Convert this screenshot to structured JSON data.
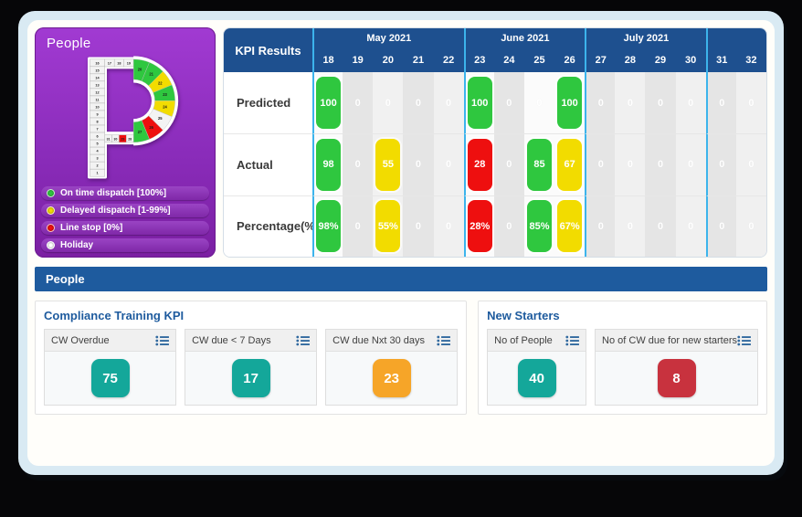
{
  "colors": {
    "header_blue": "#1e508f",
    "section_blue": "#1e5b9e",
    "separator_cyan": "#3cb4ec",
    "green": "#2fc73f",
    "yellow": "#f2dc00",
    "red": "#ee0f0f",
    "grey_cell": "#f3f3f3",
    "teal": "#14a79a",
    "orange": "#f6a528",
    "card_red": "#c8323e",
    "purple_top": "#a13ad2",
    "purple_bottom": "#7b1fa2"
  },
  "calendar_panel": {
    "title": "People",
    "stem_days": [
      "16",
      "15",
      "14",
      "13",
      "12",
      "11",
      "10",
      "9",
      "8",
      "7",
      "6",
      "5",
      "4",
      "3",
      "2",
      "1"
    ],
    "top_row_days": [
      "17",
      "18",
      "19"
    ],
    "arc_days": [
      {
        "day": "20",
        "status": "green"
      },
      {
        "day": "21",
        "status": "green"
      },
      {
        "day": "22",
        "status": "yellow"
      },
      {
        "day": "23",
        "status": "green"
      },
      {
        "day": "24",
        "status": "yellow"
      },
      {
        "day": "25",
        "status": "grey"
      },
      {
        "day": "26",
        "status": "red"
      },
      {
        "day": "27",
        "status": "green"
      }
    ],
    "mid_row_days": [
      {
        "day": "31",
        "status": "grey"
      },
      {
        "day": "30",
        "status": "grey"
      },
      {
        "day": "29",
        "status": "red"
      },
      {
        "day": "28",
        "status": "grey"
      }
    ],
    "legend": [
      {
        "status": "green",
        "label": "On time dispatch [100%]"
      },
      {
        "status": "yellow",
        "label": "Delayed dispatch [1-99%]"
      },
      {
        "status": "red",
        "label": "Line stop [0%]"
      },
      {
        "status": "white",
        "label": "Holiday"
      }
    ]
  },
  "kpi_table": {
    "title": "KPI Results",
    "month_groups": [
      {
        "label": "May 2021",
        "span": 5
      },
      {
        "label": "June 2021",
        "span": 4
      },
      {
        "label": "July 2021",
        "span": 4
      },
      {
        "label": "",
        "span": 2
      }
    ],
    "days": [
      "18",
      "19",
      "20",
      "21",
      "22",
      "23",
      "24",
      "25",
      "26",
      "27",
      "28",
      "29",
      "30",
      "31",
      "32"
    ],
    "separator_columns": [
      0,
      5,
      9,
      13
    ],
    "column_shades": [
      "#fbfbfb",
      "#e5e5e5",
      "#f1f1f1",
      "#e5e5e5",
      "#f0f0f0",
      "#fbfbfb",
      "#e5e5e5",
      "#fbfbfb",
      "#fbfbfb",
      "#e5e5e5",
      "#f0f0f0",
      "#e5e5e5",
      "#f0f0f0",
      "#e5e5e5",
      "#f0f0f0"
    ],
    "rows": [
      {
        "label": "Predicted",
        "cells": [
          [
            "100",
            "green"
          ],
          [
            "0",
            ""
          ],
          [
            "0",
            ""
          ],
          [
            "0",
            ""
          ],
          [
            "0",
            ""
          ],
          [
            "100",
            "green"
          ],
          [
            "0",
            ""
          ],
          [
            "0",
            ""
          ],
          [
            "100",
            "green"
          ],
          [
            "0",
            ""
          ],
          [
            "0",
            ""
          ],
          [
            "0",
            ""
          ],
          [
            "0",
            ""
          ],
          [
            "0",
            ""
          ],
          [
            "0",
            ""
          ]
        ]
      },
      {
        "label": "Actual",
        "cells": [
          [
            "98",
            "green"
          ],
          [
            "0",
            ""
          ],
          [
            "55",
            "yellow"
          ],
          [
            "0",
            ""
          ],
          [
            "0",
            ""
          ],
          [
            "28",
            "red"
          ],
          [
            "0",
            ""
          ],
          [
            "85",
            "green"
          ],
          [
            "67",
            "yellow"
          ],
          [
            "0",
            ""
          ],
          [
            "0",
            ""
          ],
          [
            "0",
            ""
          ],
          [
            "0",
            ""
          ],
          [
            "0",
            ""
          ],
          [
            "0",
            ""
          ]
        ]
      },
      {
        "label": "Percentage(%)",
        "cells": [
          [
            "98%",
            "green"
          ],
          [
            "0",
            ""
          ],
          [
            "55%",
            "yellow"
          ],
          [
            "0",
            ""
          ],
          [
            "0",
            ""
          ],
          [
            "28%",
            "red"
          ],
          [
            "0",
            ""
          ],
          [
            "85%",
            "green"
          ],
          [
            "67%",
            "yellow"
          ],
          [
            "0",
            ""
          ],
          [
            "0",
            ""
          ],
          [
            "0",
            ""
          ],
          [
            "0",
            ""
          ],
          [
            "0",
            ""
          ],
          [
            "0",
            ""
          ]
        ]
      }
    ]
  },
  "bottom": {
    "section_title": "People",
    "groups": [
      {
        "title": "Compliance Training KPI",
        "cards": [
          {
            "label": "CW Overdue",
            "value": "75",
            "color": "teal"
          },
          {
            "label": "CW due < 7 Days",
            "value": "17",
            "color": "teal"
          },
          {
            "label": "CW due Nxt 30 days",
            "value": "23",
            "color": "orange"
          }
        ]
      },
      {
        "title": "New Starters",
        "cards": [
          {
            "label": "No of People",
            "value": "40",
            "color": "teal"
          },
          {
            "label": "No of CW due for new starters",
            "value": "8",
            "color": "red"
          }
        ]
      }
    ]
  }
}
